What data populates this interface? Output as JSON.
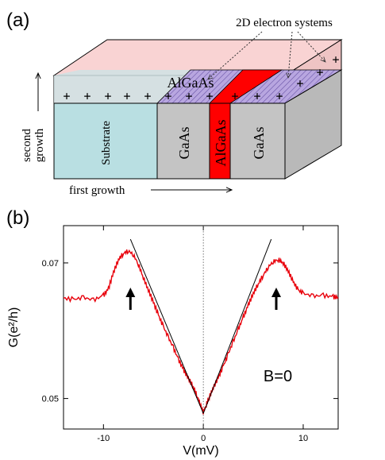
{
  "panel_a": {
    "label": "(a)",
    "callout": "2D electron systems",
    "top_layer": "AlGaAs",
    "blocks": [
      "Substrate",
      "GaAs",
      "AlGaAs",
      "GaAs"
    ],
    "second_growth": [
      "second",
      "growth"
    ],
    "first_growth": "first growth",
    "charges": "+",
    "colors": {
      "substrate": "#b9dfe2",
      "gaas": "#c4c4c4",
      "algaas_stripe": "#ff0000",
      "top_pink": "#f9d3d3",
      "hatch": "#8e7bc4"
    }
  },
  "panel_b": {
    "label": "(b)",
    "annotation": "B=0",
    "chart_data": {
      "type": "line",
      "xlabel": "V(mV)",
      "ylabel": "G(e²/h)",
      "xlim": [
        -14,
        13.5
      ],
      "ylim": [
        0.0455,
        0.0755
      ],
      "xticks": [
        -10,
        0,
        10
      ],
      "yticks": [
        0.05,
        0.07
      ],
      "xtick_labels": [
        "-10",
        "0",
        "10"
      ],
      "ytick_labels": [
        "0.05",
        "0.07"
      ],
      "series": [
        {
          "color": "#e8000b",
          "x": [
            -14,
            -13,
            -12,
            -11,
            -10,
            -9.5,
            -9,
            -8.5,
            -8,
            -7.5,
            -7,
            -6.5,
            -6,
            -5.5,
            -5,
            -4.5,
            -4,
            -3.5,
            -3,
            -2.5,
            -2,
            -1.5,
            -1,
            -0.6,
            -0.3,
            0,
            0.3,
            0.6,
            1,
            1.5,
            2,
            2.5,
            3,
            3.5,
            4,
            4.5,
            5,
            5.5,
            6,
            6.5,
            7,
            7.5,
            8,
            8.5,
            9,
            9.5,
            10,
            11,
            12,
            13,
            13.5
          ],
          "y": [
            0.0648,
            0.0646,
            0.0649,
            0.0645,
            0.0652,
            0.0662,
            0.0686,
            0.0705,
            0.0714,
            0.0718,
            0.0712,
            0.0698,
            0.0678,
            0.066,
            0.0642,
            0.0623,
            0.0606,
            0.059,
            0.0575,
            0.0558,
            0.0543,
            0.053,
            0.0517,
            0.0503,
            0.0492,
            0.048,
            0.0491,
            0.0502,
            0.0516,
            0.0531,
            0.0548,
            0.0566,
            0.0584,
            0.0602,
            0.062,
            0.0638,
            0.0655,
            0.0669,
            0.0682,
            0.0694,
            0.0702,
            0.0705,
            0.07,
            0.0688,
            0.0672,
            0.066,
            0.0655,
            0.0651,
            0.0652,
            0.065,
            0.0649
          ]
        }
      ],
      "fit_lines": [
        {
          "x": [
            -7.3,
            0
          ],
          "y": [
            0.0735,
            0.0478
          ]
        },
        {
          "x": [
            0,
            6.8
          ],
          "y": [
            0.0478,
            0.0735
          ]
        }
      ],
      "peak_arrows_x": [
        -7.3,
        7.3
      ],
      "zero_line_x": 0
    }
  }
}
